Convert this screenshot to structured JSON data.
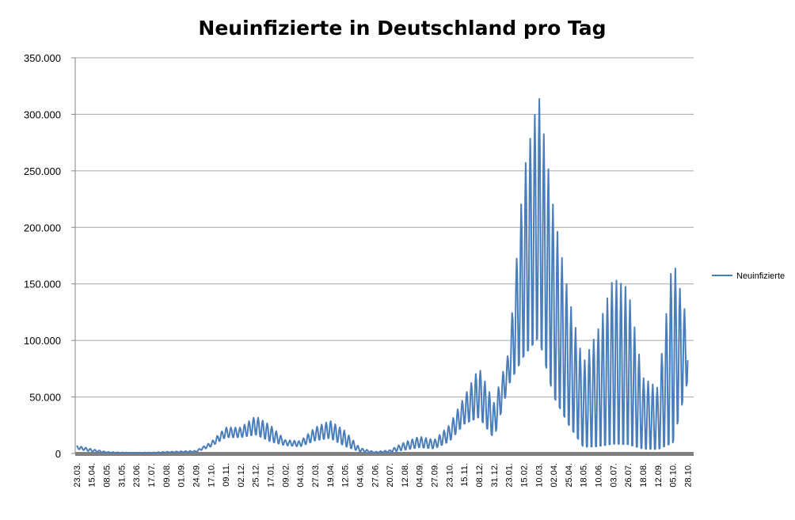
{
  "chart_data": {
    "type": "line",
    "title": "Neuinfizierte in Deutschland pro Tag",
    "xlabel": "",
    "ylabel": "",
    "ylim": [
      0,
      350000
    ],
    "yticks": [
      0,
      50000,
      100000,
      150000,
      200000,
      250000,
      300000,
      350000
    ],
    "ytick_labels": [
      "0",
      "50.000",
      "100.000",
      "150.000",
      "200.000",
      "250.000",
      "300.000",
      "350.000"
    ],
    "x_tick_labels": [
      "23.03.",
      "15.04.",
      "08.05.",
      "31.05.",
      "23.06.",
      "17.07.",
      "09.08.",
      "01.09.",
      "24.09.",
      "17.10.",
      "09.11.",
      "02.12.",
      "25.12.",
      "17.01.",
      "09.02.",
      "04.03.",
      "27.03.",
      "19.04.",
      "12.05.",
      "04.06.",
      "27.06.",
      "20.07.",
      "12.08.",
      "04.09.",
      "27.09.",
      "23.10.",
      "15.11.",
      "08.12.",
      "31.12.",
      "23.01.",
      "15.02.",
      "10.03.",
      "02.04.",
      "25.04.",
      "18.05.",
      "10.06.",
      "03.07.",
      "26.07.",
      "18.08.",
      "12.09.",
      "05.10.",
      "28.10."
    ],
    "grid": true,
    "legend_position": "right",
    "series": [
      {
        "name": "Neuinfizierte",
        "color": "#4a7ebb",
        "envelope": {
          "x_index": [
            0,
            1,
            2,
            3,
            4,
            5,
            6,
            7,
            8,
            9,
            10,
            11,
            12,
            13,
            14,
            15,
            16,
            17,
            18,
            19,
            20,
            21,
            22,
            23,
            24,
            25,
            26,
            27,
            28,
            29,
            30,
            31,
            32,
            33,
            34,
            35,
            36,
            37,
            38,
            39,
            40,
            41
          ],
          "high": [
            7000,
            4000,
            1500,
            900,
            700,
            900,
            1500,
            2000,
            2500,
            10000,
            23000,
            23000,
            33000,
            25000,
            12000,
            11000,
            23000,
            29000,
            20000,
            5000,
            1500,
            3000,
            10000,
            15000,
            12000,
            25000,
            50000,
            76000,
            45000,
            90000,
            248000,
            318000,
            216000,
            140000,
            80000,
            110000,
            155000,
            146000,
            67000,
            58000,
            174000,
            115000
          ],
          "low": [
            4000,
            1500,
            700,
            500,
            400,
            500,
            800,
            1000,
            1200,
            6000,
            14000,
            14000,
            16000,
            10000,
            7000,
            6000,
            11000,
            13000,
            6000,
            1500,
            600,
            1000,
            3000,
            5000,
            4000,
            10000,
            25000,
            30000,
            12000,
            60000,
            78000,
            92000,
            42000,
            20000,
            2000,
            1000,
            1000,
            1000,
            1000,
            1000,
            1000,
            62000
          ]
        }
      }
    ]
  }
}
